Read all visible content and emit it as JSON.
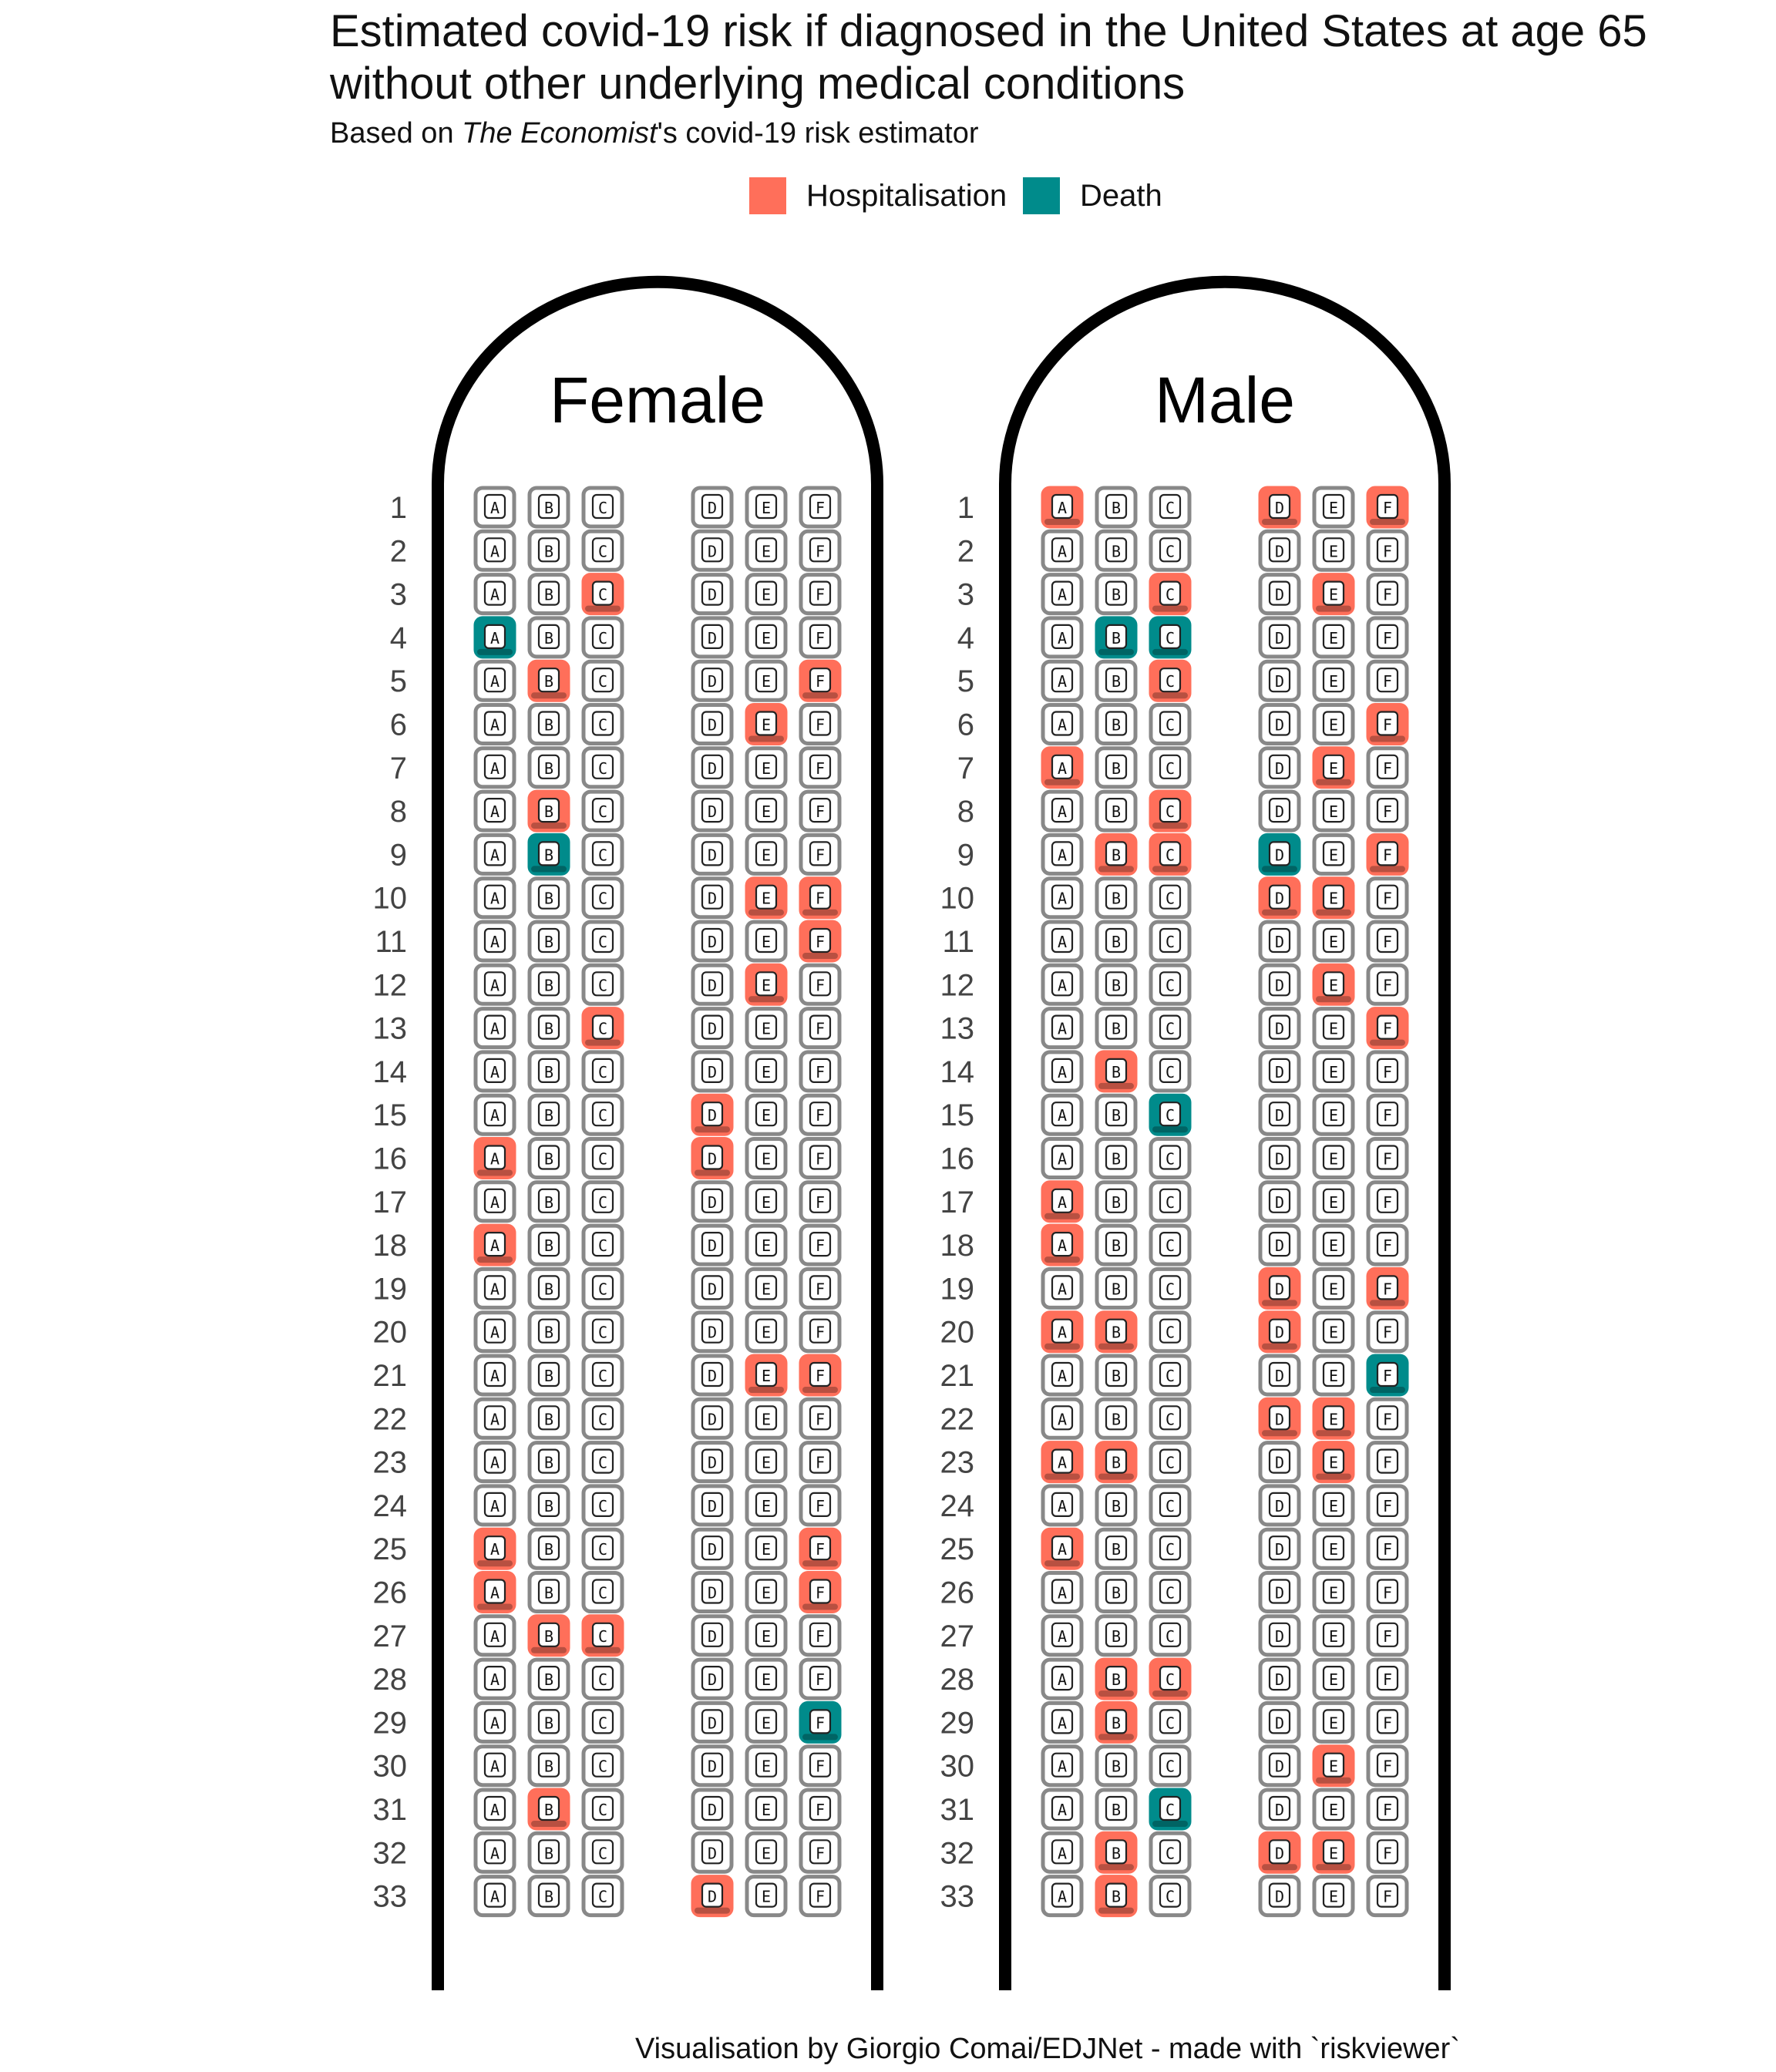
{
  "chart_data": {
    "type": "seat-map",
    "title_line1": "Estimated covid-19 risk if diagnosed in the United States at age 65",
    "title_line2": "without other underlying medical conditions",
    "subtitle_prefix": "Based on ",
    "subtitle_italic": "The Economist",
    "subtitle_suffix": "'s covid-19 risk estimator",
    "legend": [
      {
        "label": "Hospitalisation",
        "color": "#FF6F5A"
      },
      {
        "label": "Death",
        "color": "#008B8B"
      }
    ],
    "caption": "Visualisation by Giorgio Comai/EDJNet - made with `riskviewer`",
    "rows": 33,
    "seats": [
      "A",
      "B",
      "C",
      "D",
      "E",
      "F"
    ],
    "colors": {
      "hospitalisation": "#FF6F5A",
      "death": "#008B8B",
      "empty": "#888888"
    },
    "panels": [
      {
        "label": "Female",
        "hospitalisation": [
          "3C",
          "5B",
          "5F",
          "6E",
          "8B",
          "10E",
          "10F",
          "11F",
          "12E",
          "13C",
          "15D",
          "16A",
          "16D",
          "18A",
          "21E",
          "21F",
          "25A",
          "25F",
          "26A",
          "26F",
          "27B",
          "27C",
          "31B",
          "33D"
        ],
        "death": [
          "4A",
          "9B",
          "29F"
        ]
      },
      {
        "label": "Male",
        "hospitalisation": [
          "1A",
          "1D",
          "1F",
          "3C",
          "3E",
          "5C",
          "6F",
          "7A",
          "7E",
          "8C",
          "9B",
          "9C",
          "9F",
          "10D",
          "10E",
          "12E",
          "13F",
          "14B",
          "17A",
          "18A",
          "19D",
          "19F",
          "20A",
          "20B",
          "20D",
          "22D",
          "22E",
          "23A",
          "23B",
          "23E",
          "25A",
          "28B",
          "28C",
          "29B",
          "30E",
          "32B",
          "32D",
          "32E",
          "33B"
        ],
        "death": [
          "4B",
          "4C",
          "9D",
          "15C",
          "21F",
          "31C"
        ]
      }
    ]
  }
}
